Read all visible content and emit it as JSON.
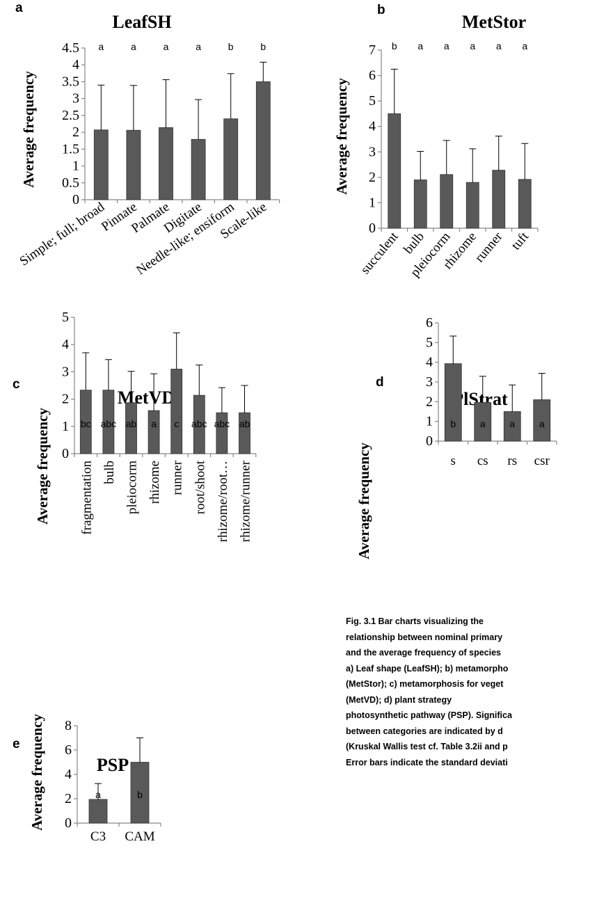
{
  "caption": {
    "lines": [
      "Fig.   3.1   Bar   charts   visualizing   the",
      "relationship  between  nominal  primary",
      "and the average frequency of species",
      "a) Leaf shape (LeafSH); b) metamorpho",
      "(MetStor); c) metamorphosis for veget",
      "(MetVD);     d)     plant     strategy",
      "photosynthetic pathway (PSP). Significa",
      "between categories are indicated by d",
      "(Kruskal Wallis test cf. Table 3.2ii and p",
      "Error bars indicate the standard deviati"
    ]
  },
  "colors": {
    "bar": "#595959",
    "bar_edge": "#333333",
    "axis": "#868686"
  },
  "chart_data": [
    {
      "panel": "a",
      "type": "bar",
      "title": "LeafSH",
      "ylabel": "Average frequency",
      "xlabel": "",
      "ylim": [
        0,
        4.5
      ],
      "yticks": [
        "0",
        "0.5",
        "1",
        "1.5",
        "2",
        "2.5",
        "3",
        "3.5",
        "4",
        "4.5"
      ],
      "categories": [
        "Simple; full; broad",
        "Pinnate",
        "Palmate",
        "Digitate",
        "Needle-like; ensiform",
        "Scale-like"
      ],
      "values": [
        2.07,
        2.06,
        2.14,
        1.79,
        2.4,
        3.5
      ],
      "errors": [
        1.33,
        1.33,
        1.42,
        1.18,
        1.34,
        0.58
      ],
      "significance": [
        "a",
        "a",
        "a",
        "a",
        "b",
        "b"
      ],
      "grid": false
    },
    {
      "panel": "b",
      "type": "bar",
      "title": "MetStor",
      "ylabel": "Average frequency",
      "xlabel": "",
      "ylim": [
        0,
        7
      ],
      "yticks": [
        "0",
        "1",
        "2",
        "3",
        "4",
        "5",
        "6",
        "7"
      ],
      "categories": [
        "succulent",
        "bulb",
        "pleiocorm",
        "rhizome",
        "runner",
        "tuft"
      ],
      "values": [
        4.5,
        1.9,
        2.11,
        1.8,
        2.28,
        1.92
      ],
      "errors": [
        1.75,
        1.12,
        1.34,
        1.32,
        1.34,
        1.41
      ],
      "significance": [
        "b",
        "a",
        "a",
        "a",
        "a",
        "a"
      ],
      "grid": false
    },
    {
      "panel": "c",
      "type": "bar",
      "title": "MetVD",
      "ylabel": "Average frequency",
      "xlabel": "",
      "ylim": [
        0,
        5
      ],
      "yticks": [
        "0",
        "1",
        "2",
        "3",
        "4",
        "5"
      ],
      "categories": [
        "fragmentation",
        "bulb",
        "pleiocorm",
        "rhizome",
        "runner",
        "root/shoot",
        "rhizome/root…",
        "rhizome/runner"
      ],
      "values": [
        2.33,
        2.33,
        1.87,
        1.58,
        3.1,
        2.14,
        1.5,
        1.5
      ],
      "errors": [
        1.37,
        1.12,
        1.15,
        1.35,
        1.33,
        1.11,
        0.92,
        1.0
      ],
      "significance": [
        "bc",
        "abc",
        "ab",
        "a",
        "c",
        "abc",
        "abc",
        "ab"
      ],
      "grid": false
    },
    {
      "panel": "d",
      "type": "bar",
      "title": "PlStrat",
      "ylabel": "Average frequency",
      "xlabel": "",
      "ylim": [
        0,
        6
      ],
      "yticks": [
        "0",
        "1",
        "2",
        "3",
        "4",
        "5",
        "6"
      ],
      "categories": [
        "s",
        "cs",
        "rs",
        "csr"
      ],
      "values": [
        3.93,
        1.96,
        1.5,
        2.1
      ],
      "errors": [
        1.4,
        1.33,
        1.35,
        1.34
      ],
      "significance": [
        "b",
        "a",
        "a",
        "a"
      ],
      "grid": false
    },
    {
      "panel": "e",
      "type": "bar",
      "title": "PSP",
      "ylabel": "Average frequency",
      "xlabel": "",
      "ylim": [
        0,
        8
      ],
      "yticks": [
        "0",
        "2",
        "4",
        "6",
        "8"
      ],
      "categories": [
        "C3",
        "CAM"
      ],
      "values": [
        1.95,
        5.0
      ],
      "errors": [
        1.3,
        2.0
      ],
      "significance": [
        "a",
        "b"
      ],
      "grid": false
    }
  ]
}
